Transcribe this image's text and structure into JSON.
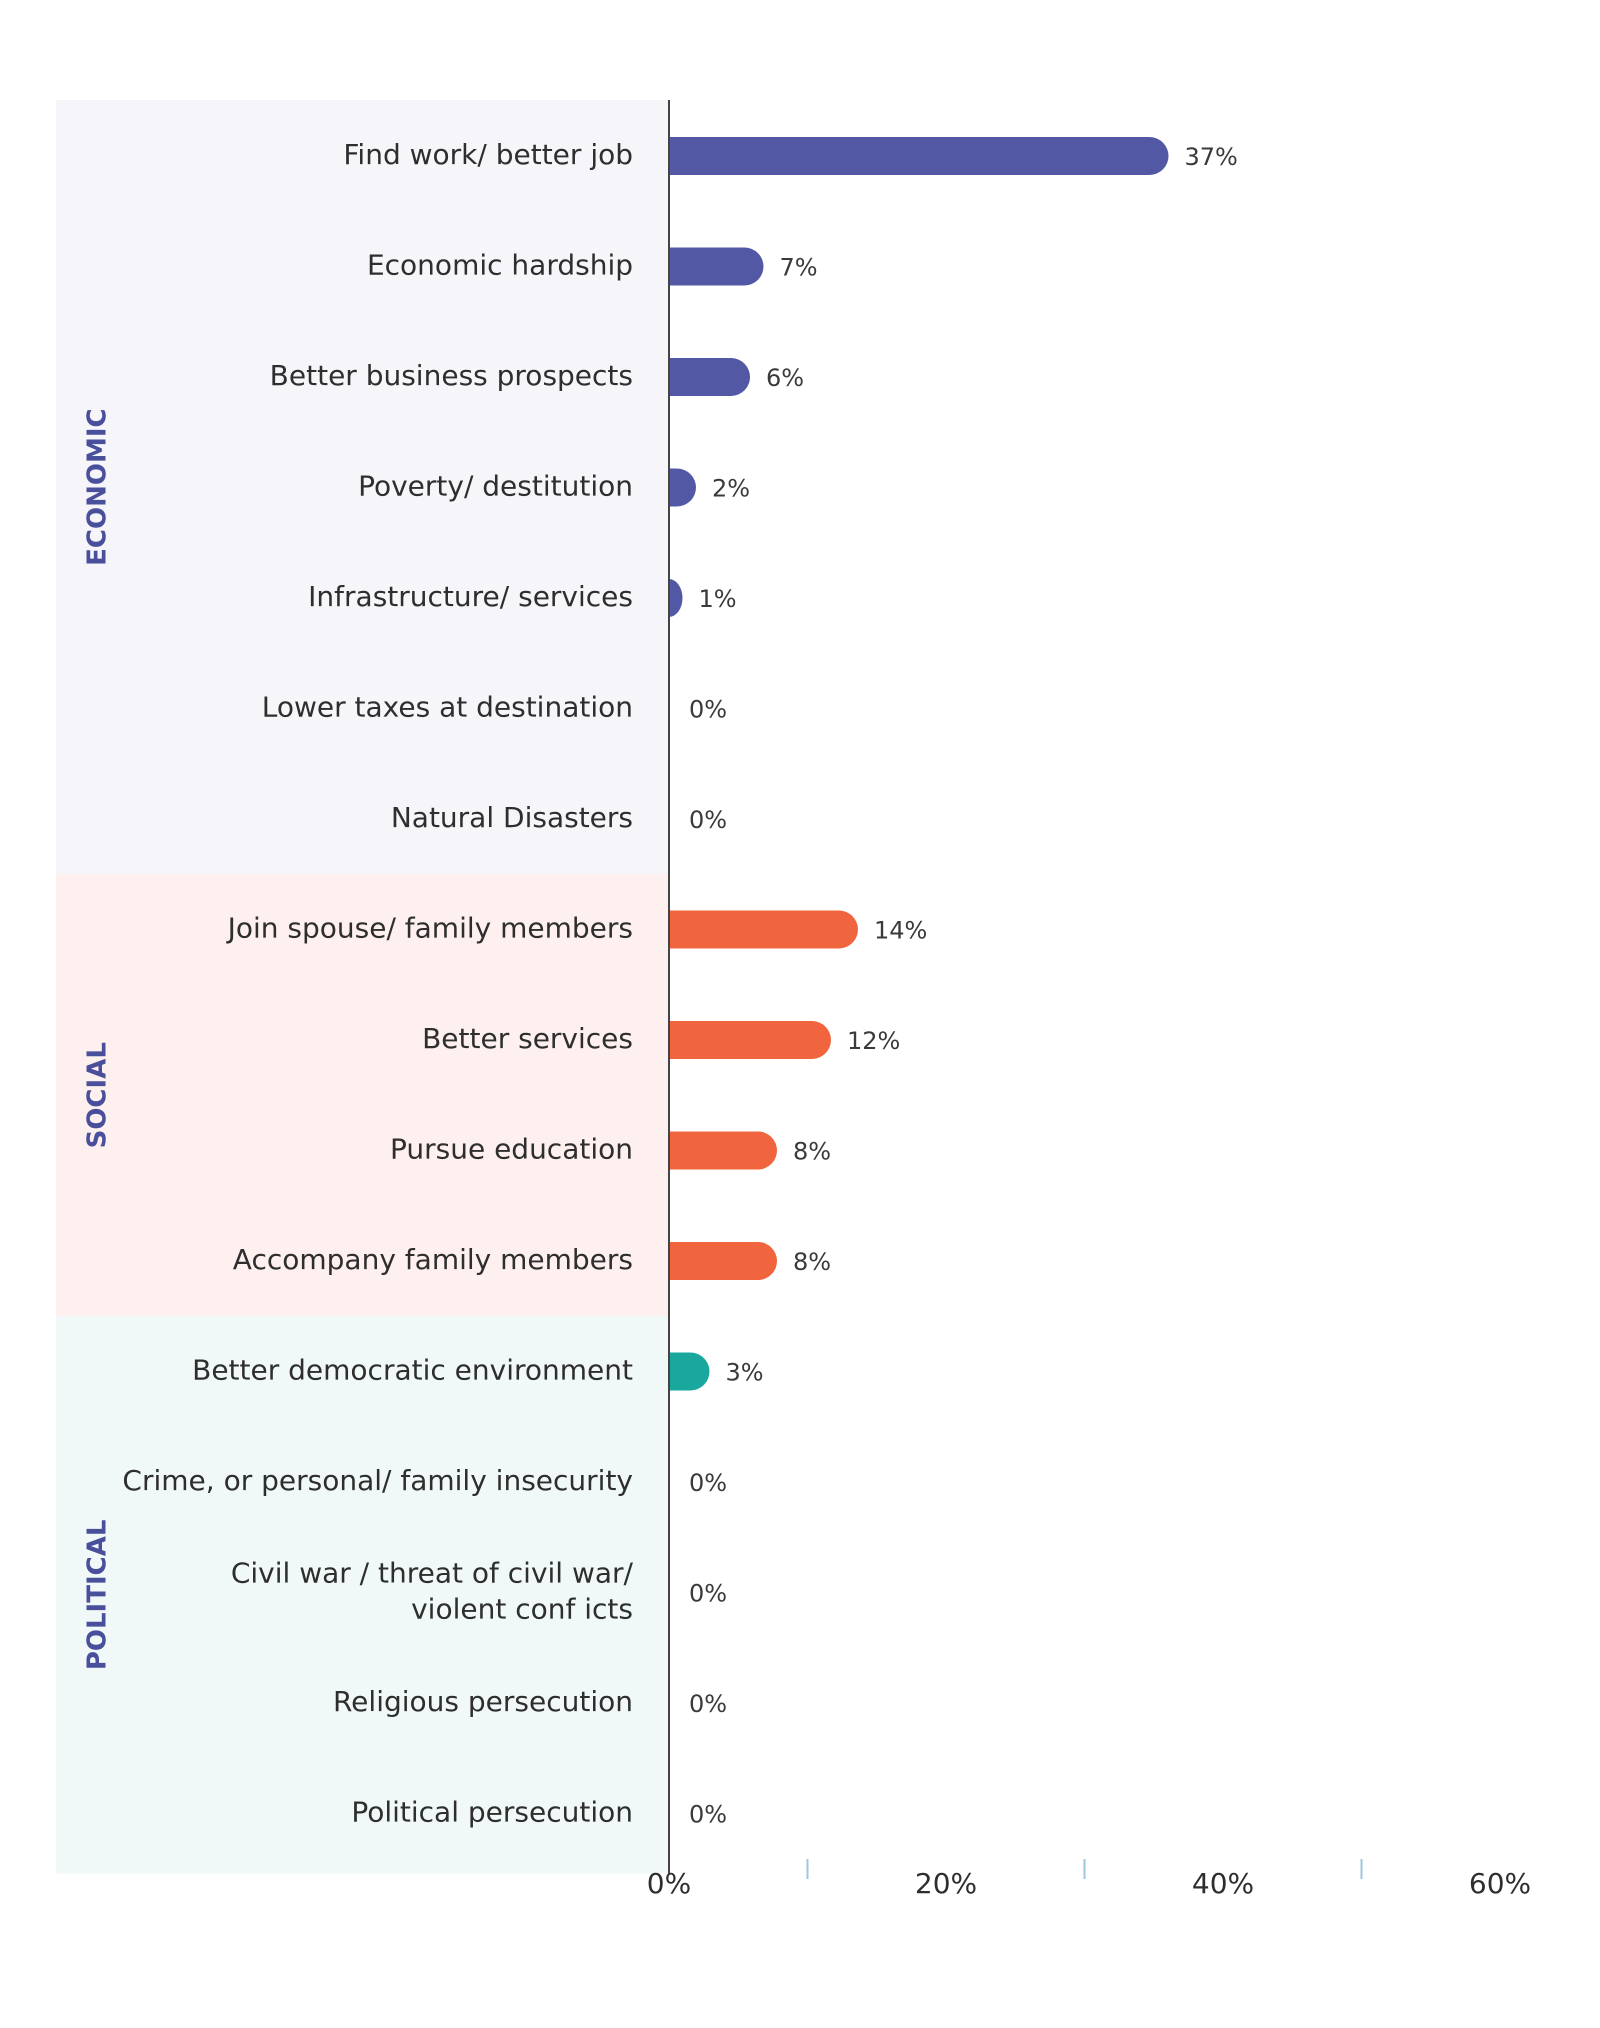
{
  "chart_data": {
    "type": "bar",
    "orientation": "horizontal",
    "groups": [
      {
        "name": "ECONOMIC",
        "color": "#5258a4",
        "background": "#f5f5fa",
        "label_color": "#4a4f9c",
        "items": [
          {
            "label": [
              "Find work/ better job"
            ],
            "value": 37,
            "value_label": "37%"
          },
          {
            "label": [
              "Economic hardship"
            ],
            "value": 7,
            "value_label": "7%"
          },
          {
            "label": [
              "Better business prospects"
            ],
            "value": 6,
            "value_label": "6%"
          },
          {
            "label": [
              "Poverty/ destitution"
            ],
            "value": 2,
            "value_label": "2%"
          },
          {
            "label": [
              "Infrastructure/ services"
            ],
            "value": 1,
            "value_label": "1%"
          },
          {
            "label": [
              "Lower taxes at destination"
            ],
            "value": 0,
            "value_label": "0%"
          },
          {
            "label": [
              "Natural Disasters"
            ],
            "value": 0,
            "value_label": "0%"
          }
        ]
      },
      {
        "name": "SOCIAL",
        "color": "#f0643e",
        "background": "#fdf0ee",
        "label_color": "#4a4f9c",
        "items": [
          {
            "label": [
              "Join spouse/ family members"
            ],
            "value": 14,
            "value_label": "14%"
          },
          {
            "label": [
              "Better services"
            ],
            "value": 12,
            "value_label": "12%"
          },
          {
            "label": [
              "Pursue education"
            ],
            "value": 8,
            "value_label": "8%"
          },
          {
            "label": [
              "Accompany family members"
            ],
            "value": 8,
            "value_label": "8%"
          }
        ]
      },
      {
        "name": "POLITICAL",
        "color": "#1aa79e",
        "background": "#f1f9f8",
        "label_color": "#4a4f9c",
        "items": [
          {
            "label": [
              "Better democratic environment"
            ],
            "value": 3,
            "value_label": "3%"
          },
          {
            "label": [
              "Crime, or personal/ family insecurity"
            ],
            "value": 0,
            "value_label": "0%"
          },
          {
            "label": [
              "Civil war / threat of civil war/",
              "violent conf icts"
            ],
            "value": 0,
            "value_label": "0%"
          },
          {
            "label": [
              "Religious persecution"
            ],
            "value": 0,
            "value_label": "0%"
          },
          {
            "label": [
              "Political persecution"
            ],
            "value": 0,
            "value_label": "0%"
          }
        ]
      }
    ],
    "x_ticks": [
      "0%",
      "20%",
      "40%",
      "60%"
    ],
    "xlim": [
      0,
      60
    ],
    "grid": false,
    "legend": "none"
  }
}
